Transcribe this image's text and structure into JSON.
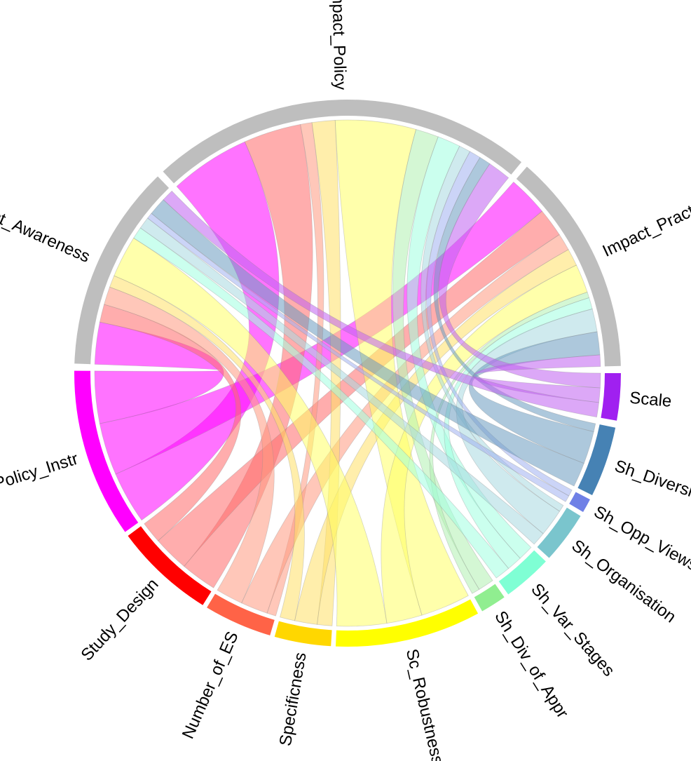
{
  "chart_data": {
    "type": "chord",
    "sectors": [
      {
        "id": "impact_policy",
        "label": "Impact_Policy",
        "color": "#bebebe",
        "start": -42.5,
        "end": 39.5
      },
      {
        "id": "impact_practice",
        "label": "Impact_Practice",
        "color": "#bebebe",
        "start": 41.0,
        "end": 88.5
      },
      {
        "id": "scale",
        "label": "Scale",
        "color": "#a020f0",
        "start": 90.0,
        "end": 100.0
      },
      {
        "id": "sh_diversity",
        "label": "Sh_Diversity",
        "color": "#4682b4",
        "start": 101.5,
        "end": 116.5
      },
      {
        "id": "sh_opp_views",
        "label": "Sh_Opp_Views",
        "color": "#6f80e6",
        "start": 117.5,
        "end": 120.5
      },
      {
        "id": "sh_organisation",
        "label": "Sh_Organisation",
        "color": "#7ac5cd",
        "start": 121.5,
        "end": 132.5
      },
      {
        "id": "sh_var_stages",
        "label": "Sh_Var_Stages",
        "color": "#7fffd4",
        "start": 133.5,
        "end": 144.0
      },
      {
        "id": "sh_div_of_appr",
        "label": "Sh_Div_of_Appr",
        "color": "#90ee90",
        "start": 145.0,
        "end": 150.5
      },
      {
        "id": "sc_robustness",
        "label": "Sc_Robustness",
        "color": "#ffff00",
        "start": 151.5,
        "end": 182.5
      },
      {
        "id": "specificness",
        "label": "Specificness",
        "color": "#ffd700",
        "start": 183.5,
        "end": 195.5
      },
      {
        "id": "number_of_es",
        "label": "Number_of_ES",
        "color": "#ff6347",
        "start": 196.5,
        "end": 211.0
      },
      {
        "id": "study_design",
        "label": "Study_Design",
        "color": "#ff0000",
        "start": 212.0,
        "end": 233.5
      },
      {
        "id": "policy_instr",
        "label": "Policy_Instr",
        "color": "#ff00ff",
        "start": 234.5,
        "end": 270.5
      },
      {
        "id": "impact_awareness",
        "label": "Impact_Awareness",
        "color": "#bebebe",
        "start": 272.0,
        "end": 316.0
      }
    ],
    "links": [
      {
        "from": "policy_instr",
        "to": "impact_policy",
        "value": 7,
        "color": "#ff00ff"
      },
      {
        "from": "policy_instr",
        "to": "impact_practice",
        "value": 7,
        "color": "#ff00ff"
      },
      {
        "from": "policy_instr",
        "to": "impact_awareness",
        "value": 7,
        "color": "#ff00ff"
      },
      {
        "from": "study_design",
        "to": "impact_policy",
        "value": 5,
        "color": "#ff6a6a"
      },
      {
        "from": "study_design",
        "to": "impact_practice",
        "value": 5,
        "color": "#ff6a6a"
      },
      {
        "from": "study_design",
        "to": "impact_awareness",
        "value": 3,
        "color": "#ff6a6a"
      },
      {
        "from": "number_of_es",
        "to": "impact_policy",
        "value": 1,
        "color": "#ff9980"
      },
      {
        "from": "number_of_es",
        "to": "impact_practice",
        "value": 3,
        "color": "#ff9980"
      },
      {
        "from": "number_of_es",
        "to": "impact_awareness",
        "value": 3,
        "color": "#ff9980"
      },
      {
        "from": "specificness",
        "to": "impact_policy",
        "value": 2,
        "color": "#ffe066"
      },
      {
        "from": "specificness",
        "to": "impact_practice",
        "value": 3,
        "color": "#ffe066"
      },
      {
        "from": "specificness",
        "to": "impact_awareness",
        "value": 2,
        "color": "#ffe066"
      },
      {
        "from": "sc_robustness",
        "to": "impact_policy",
        "value": 7,
        "color": "#ffff66"
      },
      {
        "from": "sc_robustness",
        "to": "impact_practice",
        "value": 5,
        "color": "#ffff66"
      },
      {
        "from": "sc_robustness",
        "to": "impact_awareness",
        "value": 7,
        "color": "#ffff66"
      },
      {
        "from": "sh_div_of_appr",
        "to": "impact_policy",
        "value": 2,
        "color": "#b0f0b0"
      },
      {
        "from": "sh_div_of_appr",
        "to": "impact_practice",
        "value": 1,
        "color": "#b0f0b0"
      },
      {
        "from": "sh_var_stages",
        "to": "impact_policy",
        "value": 2,
        "color": "#a0ffe0"
      },
      {
        "from": "sh_var_stages",
        "to": "impact_practice",
        "value": 2,
        "color": "#a0ffe0"
      },
      {
        "from": "sh_var_stages",
        "to": "impact_awareness",
        "value": 2,
        "color": "#a0ffe0"
      },
      {
        "from": "sh_organisation",
        "to": "impact_policy",
        "value": 1,
        "color": "#a8d8e0"
      },
      {
        "from": "sh_organisation",
        "to": "impact_practice",
        "value": 4,
        "color": "#a8d8e0"
      },
      {
        "from": "sh_organisation",
        "to": "impact_awareness",
        "value": 2,
        "color": "#a8d8e0"
      },
      {
        "from": "sh_opp_views",
        "to": "impact_policy",
        "value": 1,
        "color": "#a0b0f0"
      },
      {
        "from": "sh_opp_views",
        "to": "impact_awareness",
        "value": 1,
        "color": "#a0b0f0"
      },
      {
        "from": "sh_diversity",
        "to": "impact_policy",
        "value": 1,
        "color": "#6a9ac0"
      },
      {
        "from": "sh_diversity",
        "to": "impact_practice",
        "value": 4,
        "color": "#6a9ac0"
      },
      {
        "from": "sh_diversity",
        "to": "impact_awareness",
        "value": 3,
        "color": "#6a9ac0"
      },
      {
        "from": "scale",
        "to": "impact_policy",
        "value": 2,
        "color": "#c060f0"
      },
      {
        "from": "scale",
        "to": "impact_practice",
        "value": 2,
        "color": "#c060f0"
      },
      {
        "from": "scale",
        "to": "impact_awareness",
        "value": 2,
        "color": "#c060f0"
      }
    ]
  }
}
